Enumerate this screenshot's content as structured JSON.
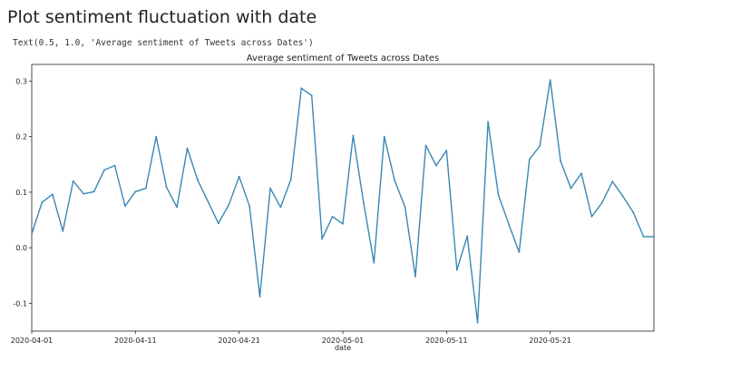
{
  "notebook": {
    "heading": "Plot sentiment fluctuation with date",
    "output_text": "Text(0.5, 1.0, 'Average sentiment of Tweets across Dates')"
  },
  "chart_data": {
    "type": "line",
    "title": "Average sentiment of Tweets across Dates",
    "xlabel": "date",
    "ylabel": "",
    "x_start": "2020-04-01",
    "x_end": "2020-05-31",
    "xlim": [
      "2020-04-01",
      "2020-05-31"
    ],
    "ylim": [
      -0.15,
      0.33
    ],
    "yticks": [
      -0.1,
      0.0,
      0.1,
      0.2,
      0.3
    ],
    "ytick_labels": [
      "-0.1",
      "0.0",
      "0.1",
      "0.2",
      "0.3"
    ],
    "xticks": [
      "2020-04-01",
      "2020-04-11",
      "2020-04-21",
      "2020-05-01",
      "2020-05-11",
      "2020-05-21"
    ],
    "xtick_labels": [
      "2020-04-01",
      "2020-04-11",
      "2020-04-21",
      "2020-05-01",
      "2020-05-11",
      "2020-05-21"
    ],
    "grid": false,
    "line_color": "#3a87b7",
    "series": [
      {
        "x": [
          "2020-04-01",
          "2020-04-02",
          "2020-04-03",
          "2020-04-04",
          "2020-04-05",
          "2020-04-06",
          "2020-04-07",
          "2020-04-08",
          "2020-04-09",
          "2020-04-10",
          "2020-04-11",
          "2020-04-12",
          "2020-04-13",
          "2020-04-14",
          "2020-04-15",
          "2020-04-16",
          "2020-04-17",
          "2020-04-18",
          "2020-04-19",
          "2020-04-20",
          "2020-04-21",
          "2020-04-22",
          "2020-04-23",
          "2020-04-24",
          "2020-04-25",
          "2020-04-26",
          "2020-04-27",
          "2020-04-28",
          "2020-04-29",
          "2020-04-30",
          "2020-05-01",
          "2020-05-02",
          "2020-05-03",
          "2020-05-04",
          "2020-05-05",
          "2020-05-06",
          "2020-05-07",
          "2020-05-08",
          "2020-05-09",
          "2020-05-10",
          "2020-05-11",
          "2020-05-12",
          "2020-05-13",
          "2020-05-14",
          "2020-05-15",
          "2020-05-16",
          "2020-05-17",
          "2020-05-18",
          "2020-05-19",
          "2020-05-20",
          "2020-05-21",
          "2020-05-22",
          "2020-05-23",
          "2020-05-24",
          "2020-05-25",
          "2020-05-26",
          "2020-05-27",
          "2020-05-28",
          "2020-05-29",
          "2020-05-30",
          "2020-05-31"
        ],
        "values": [
          0.025,
          0.082,
          0.096,
          0.03,
          0.12,
          0.097,
          0.101,
          0.14,
          0.148,
          0.075,
          0.101,
          0.107,
          0.2,
          0.109,
          0.073,
          0.179,
          0.122,
          0.083,
          0.044,
          0.077,
          0.128,
          0.075,
          -0.088,
          0.107,
          0.073,
          0.123,
          0.287,
          0.274,
          0.016,
          0.056,
          0.043,
          0.202,
          0.081,
          -0.027,
          0.2,
          0.121,
          0.073,
          -0.052,
          0.184,
          0.148,
          0.175,
          -0.04,
          0.021,
          -0.135,
          0.227,
          0.095,
          0.043,
          -0.008,
          0.159,
          0.183,
          0.302,
          0.156,
          0.107,
          0.134,
          0.056,
          0.081,
          0.119,
          0.093,
          0.064,
          0.02,
          0.02
        ]
      }
    ]
  }
}
